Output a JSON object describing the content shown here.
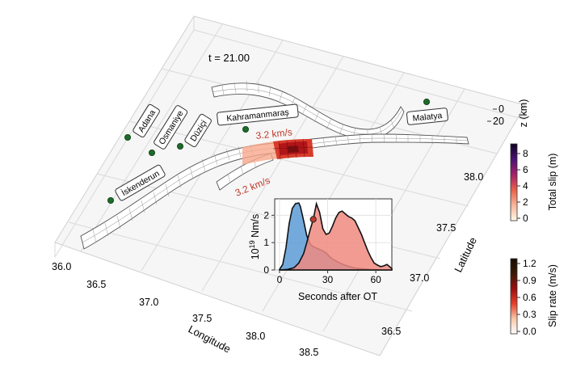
{
  "time_label": "t = 21.00",
  "cities": [
    {
      "name": "Adana",
      "label": "Adana"
    },
    {
      "name": "Osmaniye",
      "label": "Osmaniye"
    },
    {
      "name": "Duzici",
      "label": "Düziçi"
    },
    {
      "name": "Kahramanmaras",
      "label": "Kahramanmaraş"
    },
    {
      "name": "Malatya",
      "label": "Malatya"
    },
    {
      "name": "Iskenderun",
      "label": "İskenderun"
    }
  ],
  "rupture_speeds": {
    "east": "3.2 km/s",
    "west": "3.2 km/s"
  },
  "axes": {
    "longitude": {
      "label": "Longitude",
      "ticks": [
        "36.0",
        "36.5",
        "37.0",
        "37.5",
        "38.0",
        "38.5"
      ]
    },
    "latitude": {
      "label": "Latitude",
      "ticks": [
        "36.5",
        "37.0",
        "37.5",
        "38.0"
      ]
    },
    "depth": {
      "label": "z (km)",
      "ticks": [
        "0",
        "20"
      ]
    }
  },
  "colorbars": {
    "total_slip": {
      "label": "Total slip (m)",
      "ticks": [
        "0",
        "2",
        "4",
        "6",
        "8"
      ],
      "stops": [
        "#fff9e6",
        "#f8b59a",
        "#e8604a",
        "#a3206a",
        "#4b1273",
        "#0d0221"
      ]
    },
    "slip_rate": {
      "label": "Slip rate (m/s)",
      "ticks": [
        "0.0",
        "0.3",
        "0.6",
        "0.9",
        "1.2"
      ],
      "stops": [
        "#ffffff",
        "#f8c6a8",
        "#e6402a",
        "#9b0f0f",
        "#3a1a06",
        "#1a0a00"
      ]
    }
  },
  "inset": {
    "ylabel_base": "10",
    "ylabel_exp": "19",
    "ylabel_unit": " Nm/s",
    "xlabel": "Seconds after OT",
    "yticks": [
      "0",
      "1",
      "2"
    ],
    "xticks": [
      "0",
      "30",
      "60"
    ],
    "xlim": [
      -3,
      70
    ],
    "ylim": [
      0,
      2.6
    ],
    "series": [
      {
        "color": "#5b9bd5",
        "t": [
          0,
          2,
          4,
          6,
          8,
          10,
          12,
          13,
          15,
          17,
          19,
          21,
          23,
          25,
          27,
          29,
          31,
          33,
          36,
          39,
          42,
          45,
          48,
          52,
          56,
          60,
          64,
          68,
          70
        ],
        "v": [
          0.02,
          0.2,
          0.8,
          1.7,
          2.25,
          2.43,
          2.45,
          2.32,
          1.8,
          1.25,
          0.95,
          0.85,
          0.8,
          0.75,
          0.7,
          0.62,
          0.5,
          0.4,
          0.3,
          0.22,
          0.15,
          0.1,
          0.06,
          0.04,
          0.02,
          0.01,
          0.0,
          0.0,
          0.0
        ]
      },
      {
        "color": "#f08a80",
        "t": [
          0,
          5,
          9,
          12,
          15,
          17,
          19,
          21,
          23,
          25,
          27,
          29,
          31,
          33,
          35,
          37,
          39,
          41,
          43,
          45,
          47,
          49,
          51,
          53,
          55,
          57,
          59,
          61,
          63,
          65,
          67,
          69,
          70
        ],
        "v": [
          0.0,
          0.02,
          0.08,
          0.25,
          0.6,
          1.0,
          1.45,
          1.85,
          2.42,
          2.1,
          1.5,
          1.3,
          1.35,
          1.6,
          1.9,
          2.1,
          2.15,
          2.05,
          1.95,
          1.9,
          1.8,
          1.55,
          1.3,
          1.0,
          0.7,
          0.45,
          0.25,
          0.18,
          0.12,
          0.15,
          0.2,
          0.1,
          0.05
        ]
      }
    ],
    "marker": {
      "t": 21,
      "v": 1.85,
      "color": "#c0392b"
    }
  }
}
